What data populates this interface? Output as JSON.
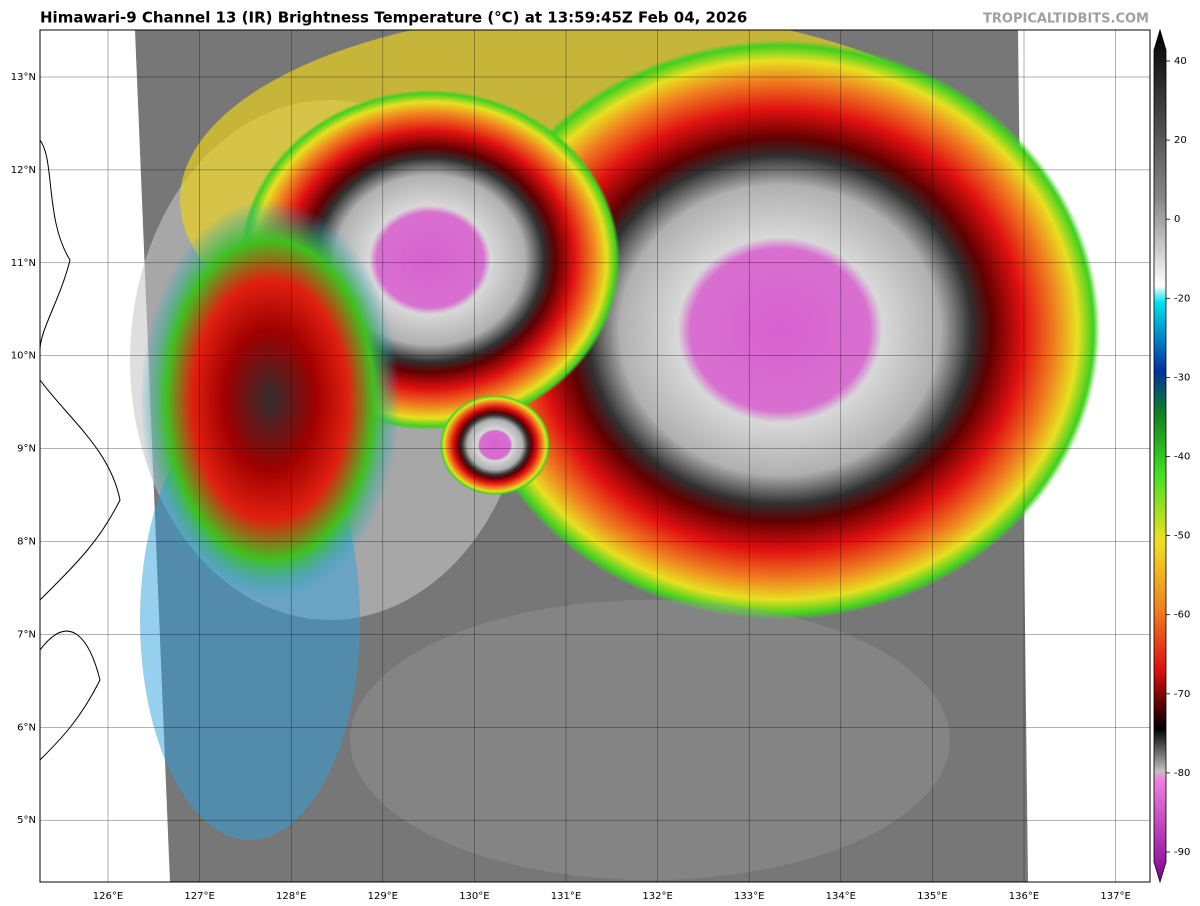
{
  "header": {
    "title": "Himawari-9 Channel 13 (IR) Brightness Temperature (°C) at 13:59:45Z Feb 04, 2026",
    "watermark": "TROPICALTIDBITS.COM"
  },
  "map": {
    "latitude_labels": [
      "13°N",
      "12°N",
      "11°N",
      "10°N",
      "9°N",
      "8°N",
      "7°N",
      "6°N",
      "5°N"
    ],
    "longitude_labels": [
      "126°E",
      "127°E",
      "128°E",
      "129°E",
      "130°E",
      "131°E",
      "132°E",
      "133°E",
      "134°E",
      "135°E",
      "136°E",
      "137°E"
    ]
  },
  "colorbar": {
    "ticks": [
      40,
      20,
      0,
      -20,
      -30,
      -40,
      -50,
      -60,
      -70,
      -80,
      -90
    ]
  }
}
